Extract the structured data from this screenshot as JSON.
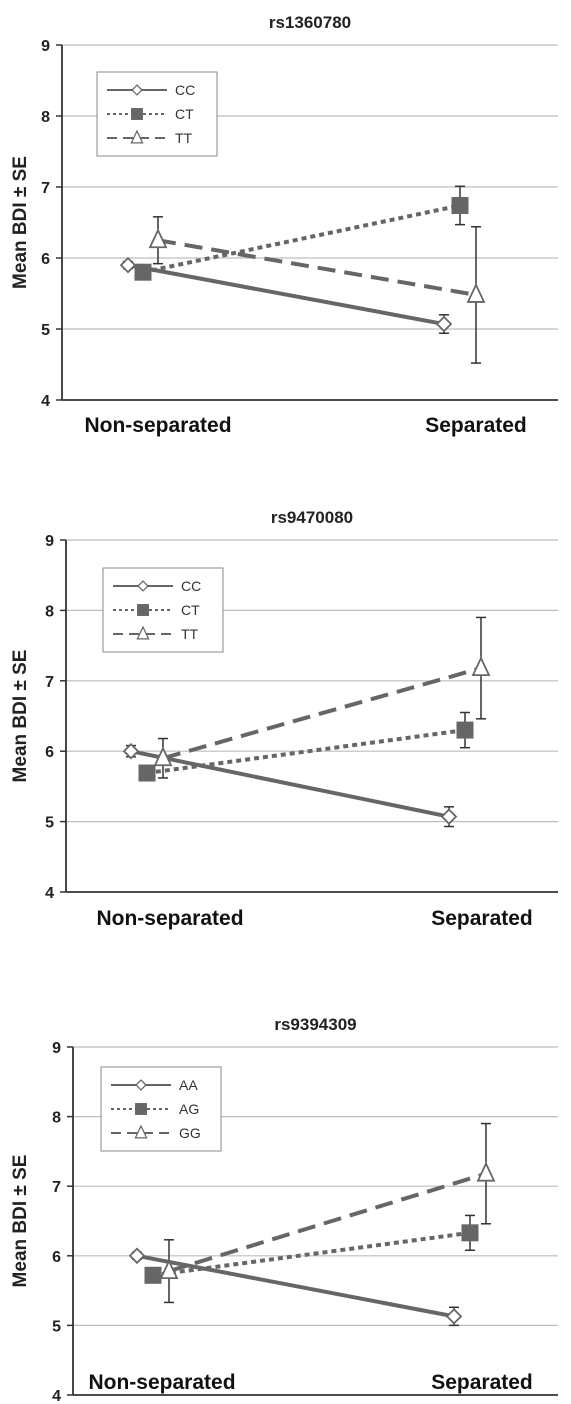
{
  "chart_data": [
    {
      "type": "line",
      "title": "rs1360780",
      "ylabel": "Mean BDI ± SE",
      "xlabel": "",
      "categories": [
        "Non-separated",
        "Separated"
      ],
      "ylim": [
        4,
        9
      ],
      "yticks": [
        "4",
        "5",
        "6",
        "7",
        "8",
        "9"
      ],
      "grid": true,
      "legend_position": "top-left",
      "series": [
        {
          "name": "CC",
          "values": [
            5.9,
            5.07
          ],
          "errors": [
            0.05,
            0.13
          ],
          "line": "solid",
          "marker": "diamond"
        },
        {
          "name": "CT",
          "values": [
            5.8,
            6.74
          ],
          "errors": [
            0.08,
            0.27
          ],
          "line": "dotted",
          "marker": "square"
        },
        {
          "name": "TT",
          "values": [
            6.25,
            5.48
          ],
          "errors": [
            0.33,
            0.96
          ],
          "line": "dashed",
          "marker": "triangle"
        }
      ]
    },
    {
      "type": "line",
      "title": "rs9470080",
      "ylabel": "Mean BDI ± SE",
      "xlabel": "",
      "categories": [
        "Non-separated",
        "Separated"
      ],
      "ylim": [
        4,
        9
      ],
      "yticks": [
        "4",
        "5",
        "6",
        "7",
        "8",
        "9"
      ],
      "grid": true,
      "legend_position": "top-left",
      "series": [
        {
          "name": "CC",
          "values": [
            6.0,
            5.07
          ],
          "errors": [
            0.08,
            0.14
          ],
          "line": "solid",
          "marker": "diamond"
        },
        {
          "name": "CT",
          "values": [
            5.69,
            6.3
          ],
          "errors": [
            0.07,
            0.25
          ],
          "line": "dotted",
          "marker": "square"
        },
        {
          "name": "TT",
          "values": [
            5.9,
            7.18
          ],
          "errors": [
            0.28,
            0.72
          ],
          "line": "dashed",
          "marker": "triangle"
        }
      ]
    },
    {
      "type": "line",
      "title": "rs9394309",
      "ylabel": "Mean BDI ± SE",
      "xlabel": "",
      "categories": [
        "Non-separated",
        "Separated"
      ],
      "ylim": [
        4,
        9
      ],
      "yticks": [
        "4",
        "5",
        "6",
        "7",
        "8",
        "9"
      ],
      "grid": true,
      "legend_position": "top-left",
      "series": [
        {
          "name": "AA",
          "values": [
            6.0,
            5.13
          ],
          "errors": [
            0.05,
            0.13
          ],
          "line": "solid",
          "marker": "diamond"
        },
        {
          "name": "AG",
          "values": [
            5.72,
            6.33
          ],
          "errors": [
            0.07,
            0.25
          ],
          "line": "dotted",
          "marker": "square"
        },
        {
          "name": "GG",
          "values": [
            5.78,
            7.18
          ],
          "errors": [
            0.45,
            0.72
          ],
          "line": "dashed",
          "marker": "triangle"
        }
      ]
    }
  ],
  "colors": {
    "line": "#666666",
    "grid": "#bdbdbd",
    "axis": "#333333",
    "text": "#222222",
    "background": "#ffffff"
  }
}
